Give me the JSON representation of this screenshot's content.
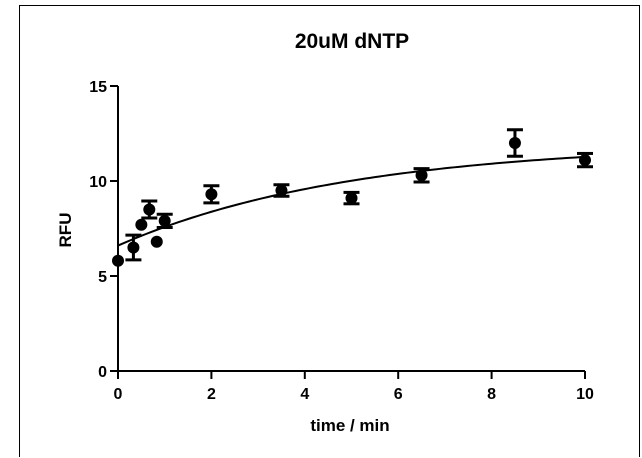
{
  "chart_data": {
    "type": "scatter",
    "title": "20uM dNTP",
    "xlabel": "time / min",
    "ylabel": "RFU",
    "xlim": [
      0,
      10
    ],
    "ylim": [
      0,
      15
    ],
    "x_ticks": [
      "0",
      "2",
      "4",
      "6",
      "8",
      "10"
    ],
    "y_ticks": [
      "0",
      "5",
      "10",
      "15"
    ],
    "grid": false,
    "legend": "none",
    "series": [
      {
        "points": [
          {
            "x": 0,
            "y": 5.8,
            "err": 0
          },
          {
            "x": 0.33,
            "y": 6.5,
            "err": 0.65
          },
          {
            "x": 0.5,
            "y": 7.7,
            "err": 0
          },
          {
            "x": 0.67,
            "y": 8.5,
            "err": 0.45
          },
          {
            "x": 0.83,
            "y": 6.8,
            "err": 0
          },
          {
            "x": 1,
            "y": 7.9,
            "err": 0.35
          },
          {
            "x": 2,
            "y": 9.3,
            "err": 0.45
          },
          {
            "x": 3.5,
            "y": 9.5,
            "err": 0.3
          },
          {
            "x": 5,
            "y": 9.1,
            "err": 0.3
          },
          {
            "x": 6.5,
            "y": 10.3,
            "err": 0.35
          },
          {
            "x": 8.5,
            "y": 12.0,
            "err": 0.7
          },
          {
            "x": 10,
            "y": 11.1,
            "err": 0.35
          }
        ],
        "color": "#000000"
      }
    ],
    "fit": {
      "model": "one-phase association",
      "y0": 6.6,
      "plateau": 12.0,
      "k": 0.2
    }
  }
}
